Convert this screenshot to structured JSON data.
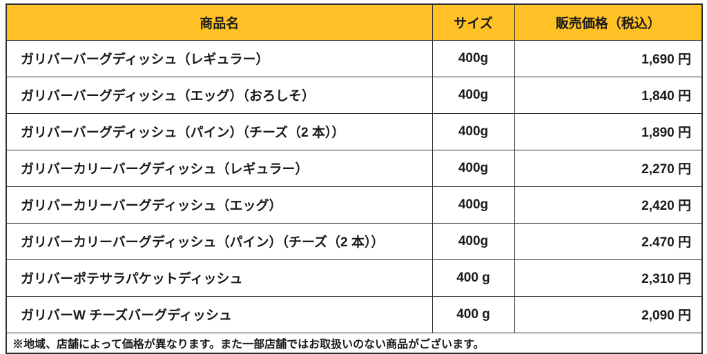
{
  "table": {
    "headers": [
      {
        "label": "商品名"
      },
      {
        "label": "サイズ"
      },
      {
        "label": "販売価格（税込）"
      }
    ],
    "rows": [
      {
        "name": "ガリバーバーグディッシュ（レギュラー）",
        "size": "400g",
        "price": "1,690 円"
      },
      {
        "name": "ガリバーバーグディッシュ（エッグ）（おろしそ）",
        "size": "400g",
        "price": "1,840 円"
      },
      {
        "name": "ガリバーバーグディッシュ（パイン）（チーズ（2 本））",
        "size": "400g",
        "price": "1,890 円"
      },
      {
        "name": "ガリバーカリーバーグディッシュ（レギュラー）",
        "size": "400g",
        "price": "2,270 円"
      },
      {
        "name": "ガリバーカリーバーグディッシュ（エッグ）",
        "size": "400g",
        "price": "2,420 円"
      },
      {
        "name": "ガリバーカリーバーグディッシュ（パイン）（チーズ（2 本））",
        "size": "400g",
        "price": "2.470 円"
      },
      {
        "name": "ガリバーポテサラパケットディッシュ",
        "size": "400 g",
        "price": "2,310 円"
      },
      {
        "name": "ガリバーW チーズバーグディッシュ",
        "size": "400 g",
        "price": "2,090 円"
      }
    ],
    "footnote": "※地域、店舗によって価格が異なります。また一部店舗ではお取扱いのない商品がございます。",
    "colors": {
      "header_bg": "#FFC125",
      "border": "#2e2e2e",
      "text": "#1a1a1a"
    }
  }
}
